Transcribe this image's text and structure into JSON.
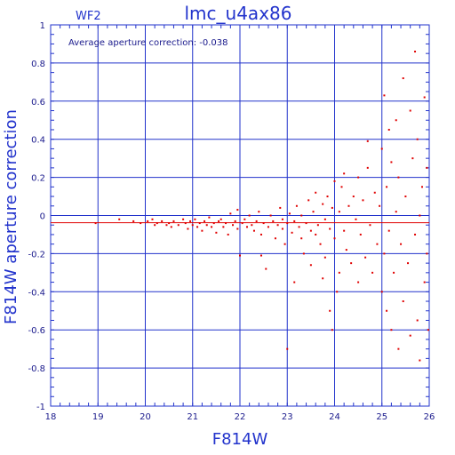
{
  "chart_data": {
    "type": "scatter",
    "title": "lmc_u4ax86",
    "panel_label": "WF2",
    "annotation": "Average aperture correction: -0.038",
    "xlabel": "F814W",
    "ylabel": "F814W aperture correction",
    "xlim": [
      18,
      26
    ],
    "ylim": [
      -1,
      1
    ],
    "x_ticks": [
      "18",
      "19",
      "20",
      "21",
      "22",
      "23",
      "24",
      "25",
      "26"
    ],
    "y_ticks": [
      "-1",
      "-0.8",
      "-0.6",
      "-0.4",
      "-0.2",
      "0",
      "0.2",
      "0.4",
      "0.6",
      "0.8",
      "1"
    ],
    "grid": true,
    "reference_line": {
      "y": -0.038,
      "color": "#e00000"
    },
    "colors": {
      "axes": "#2233cc",
      "points": "#e00000",
      "text": "#1a1a8c"
    },
    "points": [
      [
        18.95,
        -0.04
      ],
      [
        19.45,
        -0.02
      ],
      [
        19.75,
        -0.03
      ],
      [
        19.9,
        -0.04
      ],
      [
        20.05,
        -0.03
      ],
      [
        20.15,
        -0.02
      ],
      [
        20.2,
        -0.05
      ],
      [
        20.25,
        -0.04
      ],
      [
        20.35,
        -0.03
      ],
      [
        20.45,
        -0.05
      ],
      [
        20.5,
        -0.04
      ],
      [
        20.55,
        -0.06
      ],
      [
        20.6,
        -0.03
      ],
      [
        20.7,
        -0.05
      ],
      [
        20.8,
        -0.02
      ],
      [
        20.85,
        -0.04
      ],
      [
        20.9,
        -0.07
      ],
      [
        20.95,
        -0.03
      ],
      [
        21.0,
        -0.05
      ],
      [
        21.05,
        -0.02
      ],
      [
        21.1,
        -0.06
      ],
      [
        21.15,
        -0.04
      ],
      [
        21.2,
        -0.08
      ],
      [
        21.25,
        -0.03
      ],
      [
        21.3,
        -0.05
      ],
      [
        21.35,
        -0.01
      ],
      [
        21.4,
        -0.06
      ],
      [
        21.45,
        -0.04
      ],
      [
        21.5,
        -0.09
      ],
      [
        21.55,
        -0.03
      ],
      [
        21.6,
        -0.02
      ],
      [
        21.65,
        -0.06
      ],
      [
        21.7,
        -0.04
      ],
      [
        21.75,
        -0.1
      ],
      [
        21.8,
        0.01
      ],
      [
        21.85,
        -0.05
      ],
      [
        21.9,
        -0.03
      ],
      [
        21.95,
        -0.07
      ],
      [
        21.95,
        0.03
      ],
      [
        22.0,
        -0.21
      ],
      [
        22.05,
        -0.04
      ],
      [
        22.1,
        -0.02
      ],
      [
        22.15,
        -0.06
      ],
      [
        22.2,
        0.0
      ],
      [
        22.25,
        -0.05
      ],
      [
        22.3,
        -0.08
      ],
      [
        22.35,
        -0.03
      ],
      [
        22.4,
        0.02
      ],
      [
        22.45,
        -0.1
      ],
      [
        22.45,
        -0.21
      ],
      [
        22.5,
        -0.04
      ],
      [
        22.55,
        -0.28
      ],
      [
        22.6,
        -0.06
      ],
      [
        22.65,
        0.0
      ],
      [
        22.7,
        -0.03
      ],
      [
        22.75,
        -0.12
      ],
      [
        22.8,
        -0.05
      ],
      [
        22.85,
        0.04
      ],
      [
        22.9,
        -0.07
      ],
      [
        22.9,
        -0.02
      ],
      [
        22.95,
        -0.15
      ],
      [
        23.0,
        -0.04
      ],
      [
        23.0,
        -0.7
      ],
      [
        23.05,
        0.01
      ],
      [
        23.1,
        -0.09
      ],
      [
        23.15,
        -0.03
      ],
      [
        23.15,
        -0.35
      ],
      [
        23.2,
        0.05
      ],
      [
        23.25,
        -0.06
      ],
      [
        23.3,
        -0.12
      ],
      [
        23.3,
        0.0
      ],
      [
        23.35,
        -0.2
      ],
      [
        23.4,
        -0.04
      ],
      [
        23.45,
        0.08
      ],
      [
        23.5,
        -0.08
      ],
      [
        23.5,
        -0.26
      ],
      [
        23.55,
        0.02
      ],
      [
        23.6,
        -0.1
      ],
      [
        23.6,
        0.12
      ],
      [
        23.65,
        -0.05
      ],
      [
        23.7,
        -0.15
      ],
      [
        23.75,
        0.06
      ],
      [
        23.75,
        -0.33
      ],
      [
        23.8,
        -0.02
      ],
      [
        23.8,
        -0.22
      ],
      [
        23.85,
        0.1
      ],
      [
        23.9,
        -0.07
      ],
      [
        23.9,
        -0.5
      ],
      [
        23.95,
        0.04
      ],
      [
        23.95,
        -0.6
      ],
      [
        24.0,
        -0.12
      ],
      [
        24.0,
        0.18
      ],
      [
        24.05,
        -0.4
      ],
      [
        24.1,
        0.02
      ],
      [
        24.1,
        -0.3
      ],
      [
        24.15,
        0.15
      ],
      [
        24.2,
        -0.08
      ],
      [
        24.2,
        0.22
      ],
      [
        24.25,
        -0.18
      ],
      [
        24.3,
        0.05
      ],
      [
        24.35,
        -0.25
      ],
      [
        24.4,
        0.1
      ],
      [
        24.45,
        -0.02
      ],
      [
        24.5,
        0.2
      ],
      [
        24.5,
        -0.35
      ],
      [
        24.55,
        -0.1
      ],
      [
        24.6,
        0.08
      ],
      [
        24.65,
        -0.22
      ],
      [
        24.7,
        0.25
      ],
      [
        24.7,
        0.39
      ],
      [
        24.75,
        -0.05
      ],
      [
        24.8,
        -0.3
      ],
      [
        24.85,
        0.12
      ],
      [
        24.9,
        -0.15
      ],
      [
        24.95,
        0.05
      ],
      [
        25.0,
        0.35
      ],
      [
        25.0,
        -0.4
      ],
      [
        25.05,
        0.63
      ],
      [
        25.05,
        -0.2
      ],
      [
        25.1,
        0.15
      ],
      [
        25.1,
        -0.5
      ],
      [
        25.15,
        0.45
      ],
      [
        25.15,
        -0.08
      ],
      [
        25.2,
        -0.6
      ],
      [
        25.2,
        0.28
      ],
      [
        25.25,
        -0.3
      ],
      [
        25.3,
        0.5
      ],
      [
        25.3,
        0.02
      ],
      [
        25.35,
        -0.7
      ],
      [
        25.35,
        0.2
      ],
      [
        25.4,
        -0.15
      ],
      [
        25.45,
        0.72
      ],
      [
        25.45,
        -0.45
      ],
      [
        25.5,
        0.1
      ],
      [
        25.55,
        -0.25
      ],
      [
        25.6,
        0.55
      ],
      [
        25.6,
        -0.63
      ],
      [
        25.65,
        0.3
      ],
      [
        25.7,
        -0.1
      ],
      [
        25.7,
        0.86
      ],
      [
        25.75,
        -0.55
      ],
      [
        25.75,
        0.4
      ],
      [
        25.8,
        0.0
      ],
      [
        25.8,
        -0.76
      ],
      [
        25.85,
        0.15
      ],
      [
        25.9,
        -0.35
      ],
      [
        25.9,
        0.62
      ],
      [
        25.95,
        -0.2
      ],
      [
        25.95,
        0.25
      ],
      [
        25.98,
        -0.6
      ]
    ]
  }
}
